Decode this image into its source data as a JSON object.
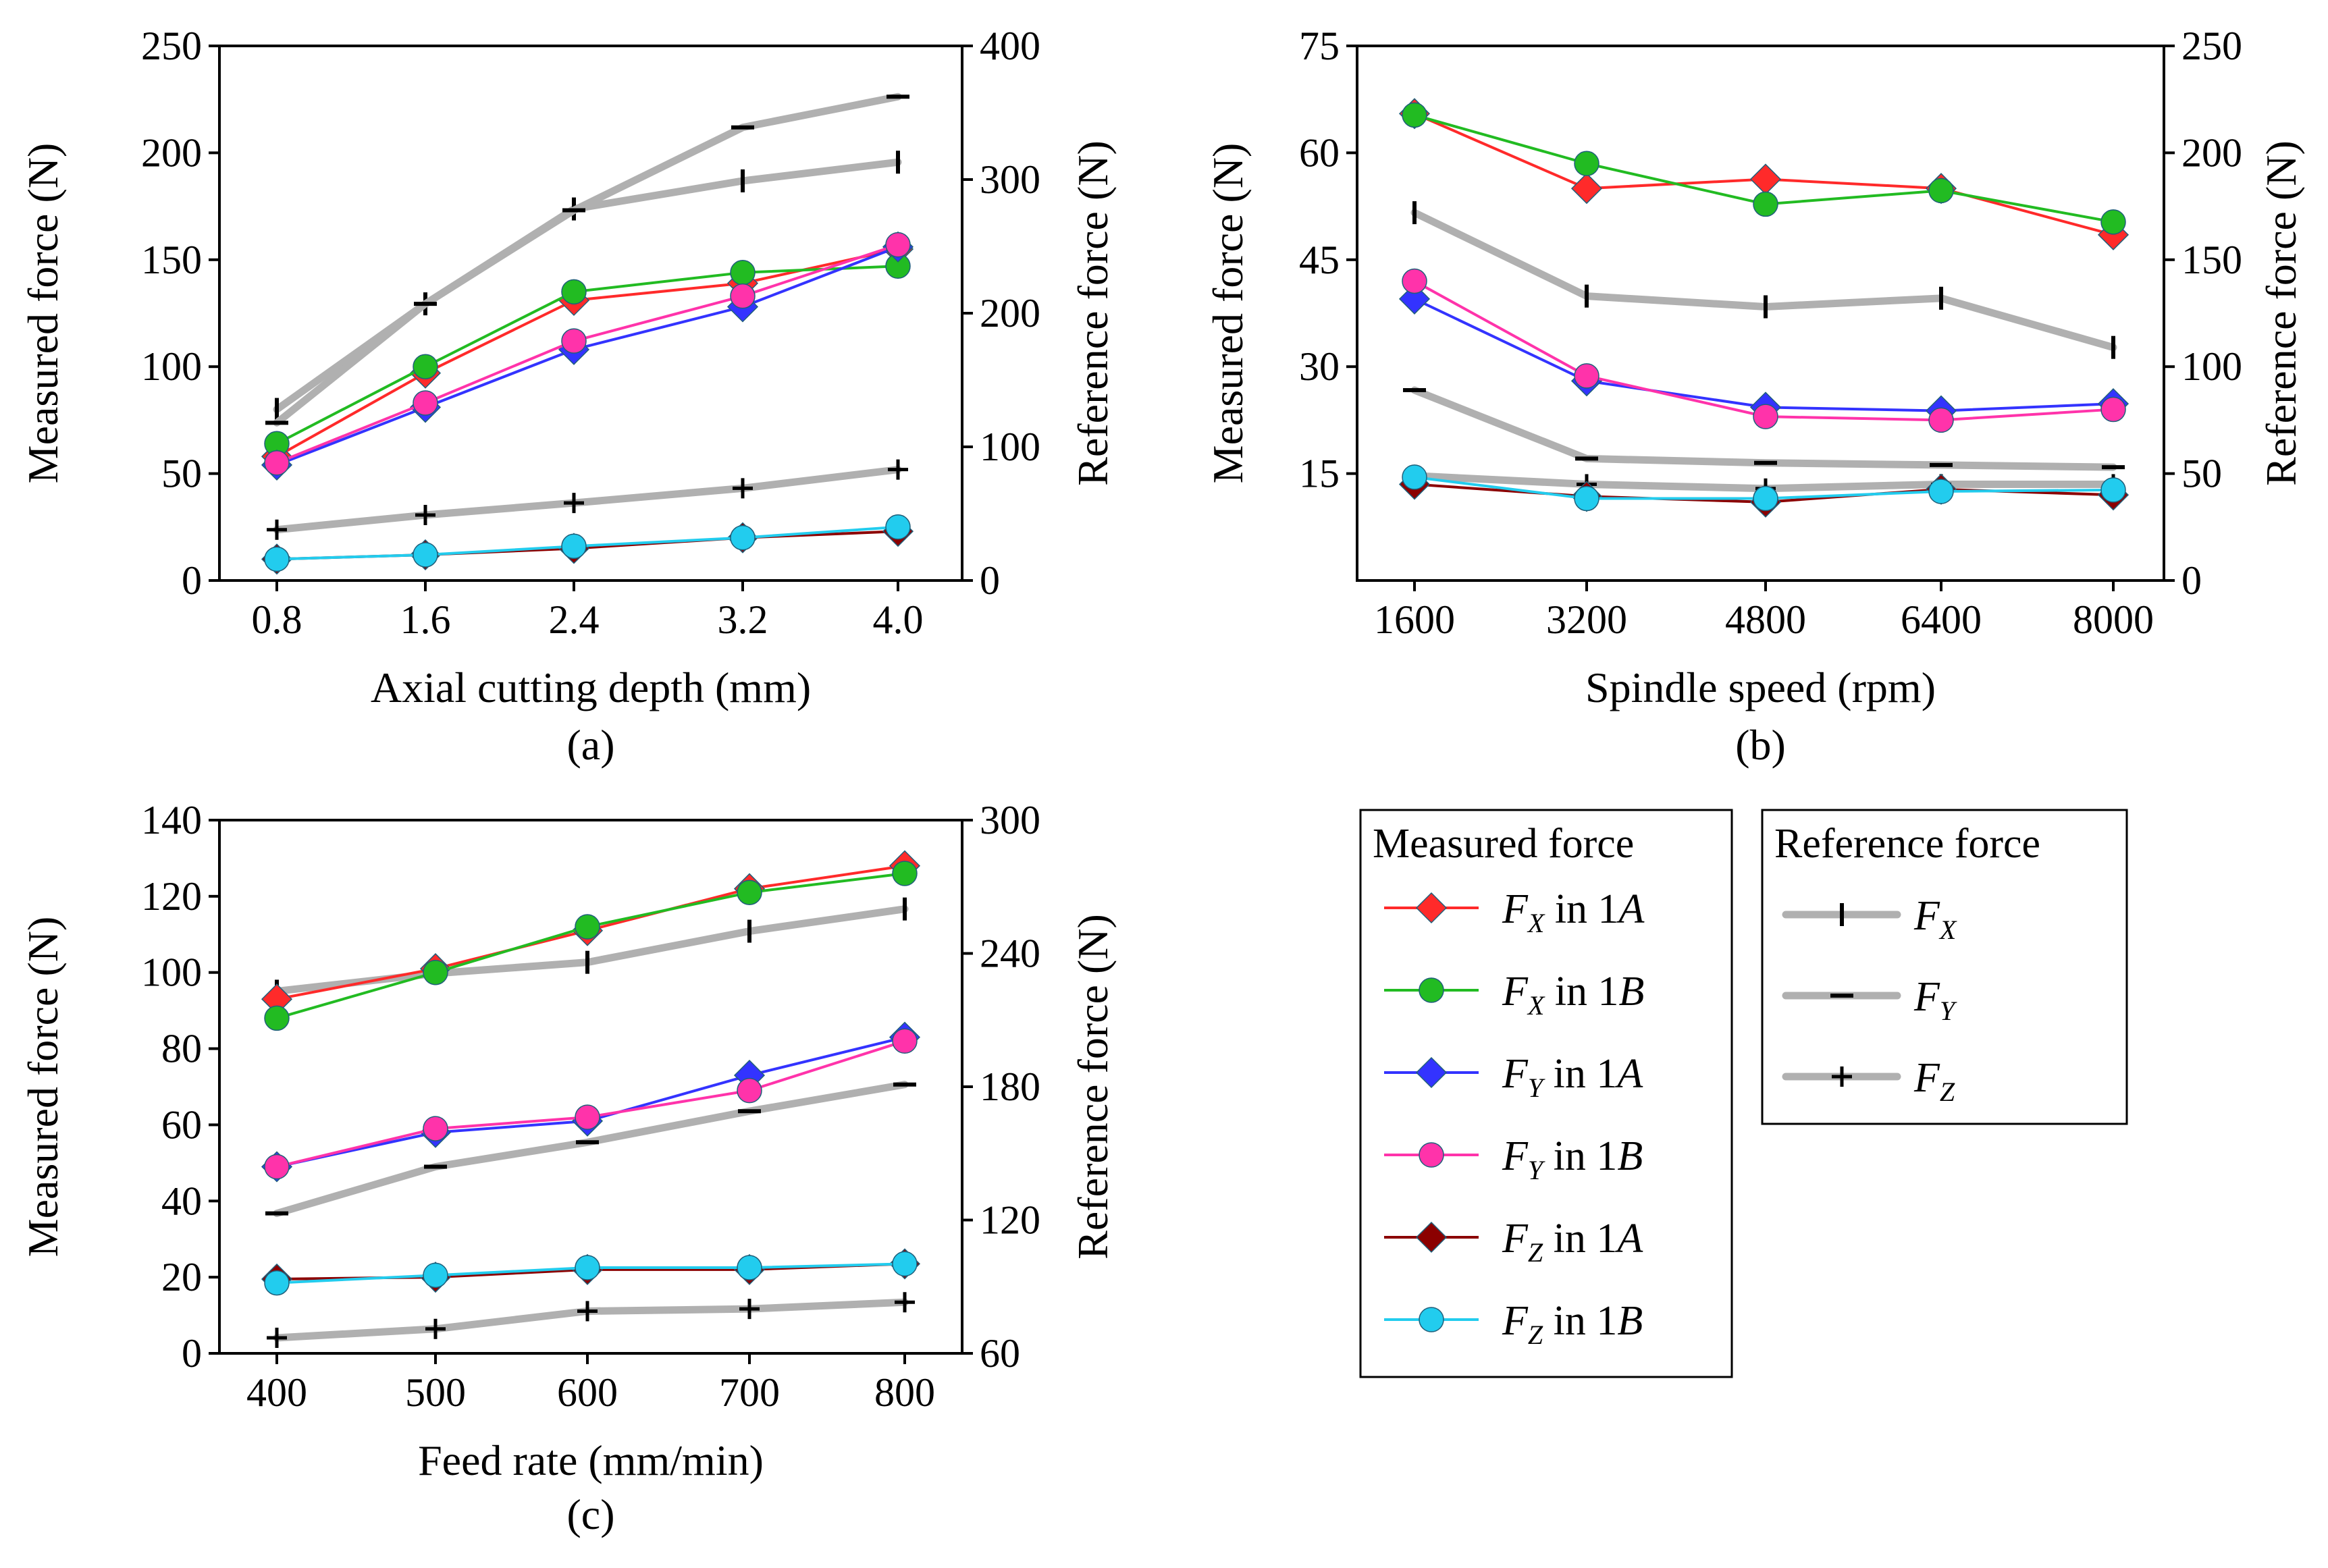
{
  "chart_data": [
    {
      "type": "line",
      "panel_label": "(a)",
      "xlabel": "Axial cutting depth (mm)",
      "ylabel": "Measured force (N)",
      "ylabel_right": "Reference force (N)",
      "categories": [
        "0.8",
        "1.6",
        "2.4",
        "3.2",
        "4.0"
      ],
      "ylim": [
        0,
        250
      ],
      "yticks": [
        0,
        50,
        100,
        150,
        200,
        250
      ],
      "ylim_right": [
        0,
        400
      ],
      "yticks_right": [
        0,
        100,
        200,
        300,
        400
      ],
      "series": [
        {
          "key": "fx1a",
          "name": "FX in 1A",
          "axis": "left",
          "values": [
            58,
            97,
            131,
            139,
            155
          ]
        },
        {
          "key": "fx1b",
          "name": "FX in 1B",
          "axis": "left",
          "values": [
            64,
            100,
            135,
            144,
            147
          ]
        },
        {
          "key": "fy1a",
          "name": "FY in 1A",
          "axis": "left",
          "values": [
            54,
            81,
            108,
            128,
            156
          ]
        },
        {
          "key": "fy1b",
          "name": "FY in 1B",
          "axis": "left",
          "values": [
            55,
            83,
            112,
            133,
            157
          ]
        },
        {
          "key": "fz1a",
          "name": "FZ in 1A",
          "axis": "left",
          "values": [
            10,
            12,
            15,
            20,
            23
          ]
        },
        {
          "key": "fz1b",
          "name": "FZ in 1B",
          "axis": "left",
          "values": [
            10,
            12,
            16,
            20,
            25
          ]
        },
        {
          "key": "rx",
          "name": "FX (reference)",
          "axis": "right",
          "values": [
            128,
            207,
            278,
            299,
            313
          ]
        },
        {
          "key": "ry",
          "name": "FY (reference)",
          "axis": "right",
          "values": [
            118,
            207,
            277,
            339,
            362
          ]
        },
        {
          "key": "rz",
          "name": "FZ (reference)",
          "axis": "right",
          "values": [
            38,
            49,
            58,
            69,
            83
          ]
        }
      ]
    },
    {
      "type": "line",
      "panel_label": "(b)",
      "xlabel": "Spindle speed (rpm)",
      "ylabel": "Measured force (N)",
      "ylabel_right": "Reference force (N)",
      "categories": [
        "1600",
        "3200",
        "4800",
        "6400",
        "8000"
      ],
      "ylim": [
        0,
        75
      ],
      "yticks": [
        15,
        30,
        45,
        60,
        75
      ],
      "ylim_right": [
        0,
        250
      ],
      "yticks_right": [
        0,
        50,
        100,
        150,
        200,
        250
      ],
      "series": [
        {
          "key": "fx1a",
          "name": "FX in 1A",
          "axis": "left",
          "values": [
            65.5,
            55.0,
            56.3,
            55.0,
            48.5
          ]
        },
        {
          "key": "fx1b",
          "name": "FX in 1B",
          "axis": "left",
          "values": [
            65.3,
            58.5,
            52.8,
            54.7,
            50.3
          ]
        },
        {
          "key": "fy1a",
          "name": "FY in 1A",
          "axis": "left",
          "values": [
            39.5,
            28.0,
            24.3,
            23.8,
            24.8
          ]
        },
        {
          "key": "fy1b",
          "name": "FY in 1B",
          "axis": "left",
          "values": [
            42.0,
            28.7,
            23.0,
            22.5,
            24.0
          ]
        },
        {
          "key": "fz1a",
          "name": "FZ in 1A",
          "axis": "left",
          "values": [
            13.5,
            11.8,
            11.0,
            12.8,
            12.0
          ]
        },
        {
          "key": "fz1b",
          "name": "FZ in 1B",
          "axis": "left",
          "values": [
            14.5,
            11.5,
            11.5,
            12.5,
            12.7
          ]
        },
        {
          "key": "rx",
          "name": "FX (reference)",
          "axis": "right",
          "values": [
            172,
            133,
            128,
            132,
            109
          ]
        },
        {
          "key": "ry",
          "name": "FY (reference)",
          "axis": "right",
          "values": [
            89,
            57,
            55,
            54,
            53
          ]
        },
        {
          "key": "rz",
          "name": "FZ (reference)",
          "axis": "right",
          "values": [
            49,
            45,
            43,
            45,
            45
          ]
        }
      ]
    },
    {
      "type": "line",
      "panel_label": "(c)",
      "xlabel": "Feed rate (mm/min)",
      "ylabel": "Measured force (N)",
      "ylabel_right": "Reference force (N)",
      "categories": [
        "400",
        "500",
        "600",
        "700",
        "800"
      ],
      "ylim": [
        0,
        140
      ],
      "yticks": [
        0,
        20,
        40,
        60,
        80,
        100,
        120,
        140
      ],
      "ylim_right": [
        60,
        300
      ],
      "yticks_right": [
        60,
        120,
        180,
        240,
        300
      ],
      "series": [
        {
          "key": "fx1a",
          "name": "FX in 1A",
          "axis": "left",
          "values": [
            93,
            101,
            111,
            122,
            128
          ]
        },
        {
          "key": "fx1b",
          "name": "FX in 1B",
          "axis": "left",
          "values": [
            88,
            100,
            112,
            121,
            126
          ]
        },
        {
          "key": "fy1a",
          "name": "FY in 1A",
          "axis": "left",
          "values": [
            49,
            58,
            61,
            73,
            83
          ]
        },
        {
          "key": "fy1b",
          "name": "FY in 1B",
          "axis": "left",
          "values": [
            49,
            59,
            62,
            69,
            82
          ]
        },
        {
          "key": "fz1a",
          "name": "FZ in 1A",
          "axis": "left",
          "values": [
            19.5,
            20,
            22,
            22,
            23.5
          ]
        },
        {
          "key": "fz1b",
          "name": "FZ in 1B",
          "axis": "left",
          "values": [
            18.5,
            20.5,
            22.5,
            22.5,
            23.5
          ]
        },
        {
          "key": "rx",
          "name": "FX (reference)",
          "axis": "right",
          "values": [
            223,
            231,
            236,
            250,
            260
          ]
        },
        {
          "key": "ry",
          "name": "FY (reference)",
          "axis": "right",
          "values": [
            123,
            144,
            155,
            169,
            181
          ]
        },
        {
          "key": "rz",
          "name": "FZ (reference)",
          "axis": "right",
          "values": [
            67,
            71,
            79,
            80,
            83
          ]
        }
      ]
    }
  ],
  "styles": {
    "fx1a": {
      "color": "#ff2a2a",
      "marker": "diamond"
    },
    "fx1b": {
      "color": "#22bb22",
      "marker": "circle"
    },
    "fy1a": {
      "color": "#3333ff",
      "marker": "diamond"
    },
    "fy1b": {
      "color": "#ff33aa",
      "marker": "circle"
    },
    "fz1a": {
      "color": "#8b0000",
      "marker": "diamond"
    },
    "fz1b": {
      "color": "#22ccee",
      "marker": "circle"
    },
    "rx": {
      "color": "#b0b0b0",
      "marker": "vbar"
    },
    "ry": {
      "color": "#b0b0b0",
      "marker": "hbar"
    },
    "rz": {
      "color": "#b0b0b0",
      "marker": "plus"
    },
    "marker_edge": "#1f5f7a"
  },
  "legend": {
    "measured_title": "Measured force",
    "reference_title": "Reference force",
    "measured_items": [
      {
        "key": "fx1a",
        "sub": "X",
        "suffix": "1A"
      },
      {
        "key": "fx1b",
        "sub": "X",
        "suffix": "1B"
      },
      {
        "key": "fy1a",
        "sub": "Y",
        "suffix": "1A"
      },
      {
        "key": "fy1b",
        "sub": "Y",
        "suffix": "1B"
      },
      {
        "key": "fz1a",
        "sub": "Z",
        "suffix": "1A"
      },
      {
        "key": "fz1b",
        "sub": "Z",
        "suffix": "1B"
      }
    ],
    "reference_items": [
      {
        "key": "rx",
        "sub": "X"
      },
      {
        "key": "ry",
        "sub": "Y"
      },
      {
        "key": "rz",
        "sub": "Z"
      }
    ],
    "symbol_letter": "F",
    "in_word": "in"
  }
}
